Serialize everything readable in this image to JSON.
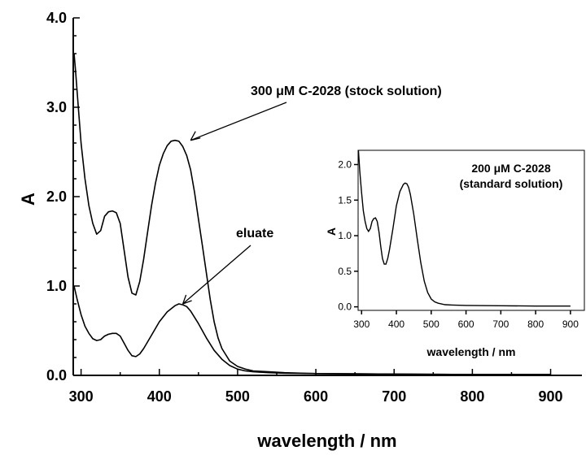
{
  "chart_data": [
    {
      "type": "line",
      "xlabel": "wavelength / nm",
      "ylabel": "A",
      "xlim": [
        290,
        940
      ],
      "ylim": [
        0,
        4.0
      ],
      "xticks": [
        300,
        400,
        500,
        600,
        700,
        800,
        900
      ],
      "yticks": [
        {
          "value": 0,
          "label": "0.0"
        },
        {
          "value": 1,
          "label": "1.0"
        },
        {
          "value": 2,
          "label": "2.0"
        },
        {
          "value": 3,
          "label": "3.0"
        },
        {
          "value": 4,
          "label": "4.0"
        }
      ],
      "grid": false,
      "series": [
        {
          "id": "stock",
          "x": [
            291,
            293,
            296,
            300,
            305,
            310,
            315,
            320,
            325,
            330,
            335,
            340,
            345,
            350,
            355,
            360,
            365,
            370,
            375,
            380,
            385,
            390,
            395,
            400,
            405,
            410,
            415,
            420,
            425,
            430,
            435,
            440,
            445,
            450,
            455,
            460,
            465,
            470,
            475,
            480,
            490,
            500,
            510,
            520,
            540,
            560,
            600,
            700,
            800,
            900
          ],
          "y": [
            3.6,
            3.4,
            3.05,
            2.6,
            2.2,
            1.9,
            1.7,
            1.58,
            1.62,
            1.78,
            1.83,
            1.84,
            1.82,
            1.7,
            1.4,
            1.1,
            0.92,
            0.9,
            1.05,
            1.3,
            1.6,
            1.9,
            2.15,
            2.35,
            2.48,
            2.57,
            2.62,
            2.63,
            2.62,
            2.56,
            2.46,
            2.3,
            2.05,
            1.75,
            1.45,
            1.15,
            0.85,
            0.6,
            0.42,
            0.3,
            0.16,
            0.1,
            0.07,
            0.05,
            0.04,
            0.03,
            0.02,
            0.015,
            0.01,
            0.01
          ]
        },
        {
          "id": "eluate",
          "x": [
            291,
            295,
            300,
            305,
            310,
            315,
            320,
            325,
            330,
            335,
            340,
            345,
            350,
            355,
            360,
            365,
            370,
            375,
            380,
            390,
            400,
            410,
            420,
            425,
            430,
            435,
            440,
            450,
            460,
            470,
            480,
            490,
            500,
            510,
            520,
            540,
            560,
            600,
            700,
            800,
            900
          ],
          "y": [
            1.0,
            0.85,
            0.68,
            0.55,
            0.47,
            0.41,
            0.39,
            0.4,
            0.44,
            0.46,
            0.47,
            0.47,
            0.44,
            0.36,
            0.28,
            0.22,
            0.21,
            0.24,
            0.3,
            0.45,
            0.6,
            0.71,
            0.78,
            0.8,
            0.79,
            0.77,
            0.72,
            0.58,
            0.42,
            0.28,
            0.18,
            0.11,
            0.07,
            0.05,
            0.04,
            0.03,
            0.025,
            0.02,
            0.015,
            0.01,
            0.01
          ]
        }
      ],
      "annotations": [
        {
          "text": "300 μM C-2028 (stock solution)",
          "arrow_to": [
            440,
            2.63
          ]
        },
        {
          "text": "eluate",
          "arrow_to": [
            430,
            0.8
          ]
        }
      ]
    },
    {
      "type": "line",
      "inset": true,
      "xlabel": "wavelength / nm",
      "ylabel": "A",
      "xlim": [
        290,
        940
      ],
      "ylim": [
        -0.05,
        2.2
      ],
      "xticks": [
        300,
        400,
        500,
        600,
        700,
        800,
        900
      ],
      "yticks": [
        {
          "value": 0,
          "label": "0.0"
        },
        {
          "value": 0.5,
          "label": "0.5"
        },
        {
          "value": 1.0,
          "label": "1.0"
        },
        {
          "value": 1.5,
          "label": "1.5"
        },
        {
          "value": 2.0,
          "label": "2.0"
        }
      ],
      "series": [
        {
          "id": "standard",
          "x": [
            291,
            295,
            300,
            305,
            310,
            315,
            320,
            325,
            330,
            335,
            340,
            345,
            350,
            355,
            360,
            365,
            370,
            375,
            380,
            390,
            400,
            410,
            420,
            425,
            430,
            435,
            440,
            450,
            460,
            470,
            480,
            490,
            500,
            510,
            520,
            540,
            560,
            600,
            700,
            800,
            900
          ],
          "y": [
            2.2,
            1.9,
            1.6,
            1.35,
            1.2,
            1.1,
            1.06,
            1.1,
            1.2,
            1.24,
            1.25,
            1.2,
            1.05,
            0.85,
            0.68,
            0.6,
            0.6,
            0.68,
            0.8,
            1.1,
            1.42,
            1.62,
            1.72,
            1.74,
            1.73,
            1.68,
            1.58,
            1.3,
            0.95,
            0.62,
            0.36,
            0.2,
            0.11,
            0.07,
            0.05,
            0.03,
            0.025,
            0.02,
            0.015,
            0.01,
            0.01
          ]
        }
      ],
      "annotations": [
        {
          "text": "200 μM C-2028"
        },
        {
          "text": "(standard solution)"
        }
      ]
    }
  ]
}
